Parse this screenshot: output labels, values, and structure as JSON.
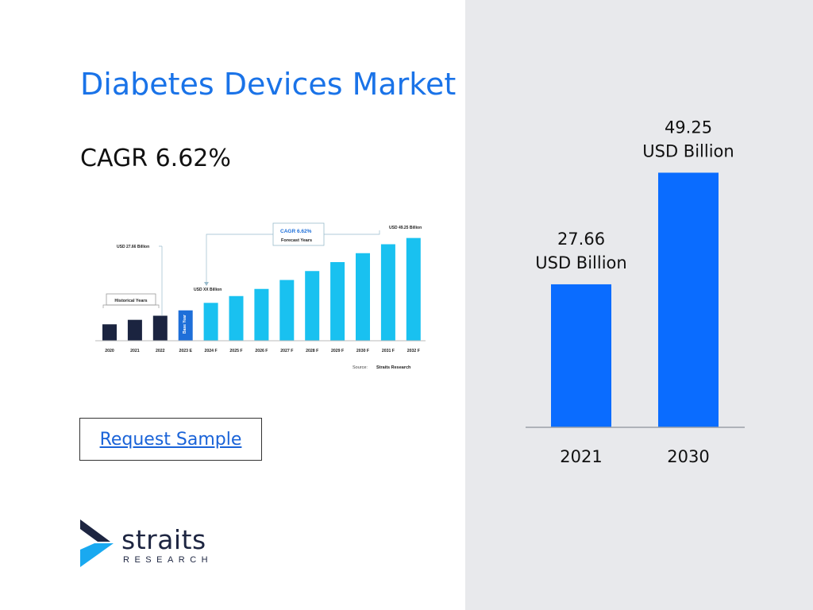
{
  "slide": {
    "title": "Diabetes Devices Market",
    "cagr_text": "CAGR 6.62%",
    "request_sample": "Request Sample"
  },
  "logo": {
    "word": "straits",
    "sub": "RESEARCH"
  },
  "colors": {
    "title": "#1a73e8",
    "bar_main": "#0a6cff",
    "panel_bg": "#e8e9ec",
    "thumb_historical": "#1b2440",
    "thumb_base": "#1e6fd9",
    "thumb_forecast": "#19c1f0",
    "logo_dark": "#1d2541",
    "logo_blue": "#19a9f0"
  },
  "chart_data": [
    {
      "type": "bar",
      "categories": [
        "2021",
        "2030"
      ],
      "values": [
        27.66,
        49.25
      ],
      "data_labels": [
        [
          "27.66",
          "USD Billion"
        ],
        [
          "49.25",
          "USD Billion"
        ]
      ],
      "ylim": [
        0,
        55
      ],
      "grid": false,
      "legend": "none"
    },
    {
      "type": "bar",
      "categories": [
        "2020",
        "2021",
        "2022",
        "2023 E",
        "2024 F",
        "2025 F",
        "2026 F",
        "2027 F",
        "2028 F",
        "2029 F",
        "2030 F",
        "2031 F",
        "2032 F"
      ],
      "values": [
        9.2,
        11.7,
        14.0,
        17.0,
        21.2,
        25.0,
        29.0,
        34.0,
        39.0,
        44.0,
        49.0,
        54.0,
        57.5
      ],
      "bar_roles": [
        "historical",
        "historical",
        "historical",
        "base",
        "forecast",
        "forecast",
        "forecast",
        "forecast",
        "forecast",
        "forecast",
        "forecast",
        "forecast",
        "forecast"
      ],
      "ylim": [
        0,
        60
      ],
      "annotations": {
        "start_value": "USD 27.66 Billion",
        "mid_value": "USD XX Billion",
        "end_value": "USD 49.25 Billion",
        "cagr": "CAGR 6.62%",
        "forecast_label": "Forecast Years",
        "historical_label": "Historical Years",
        "base_year_label": "Base Year",
        "source_prefix": "Source:",
        "source_name": "Straits Research"
      }
    }
  ]
}
